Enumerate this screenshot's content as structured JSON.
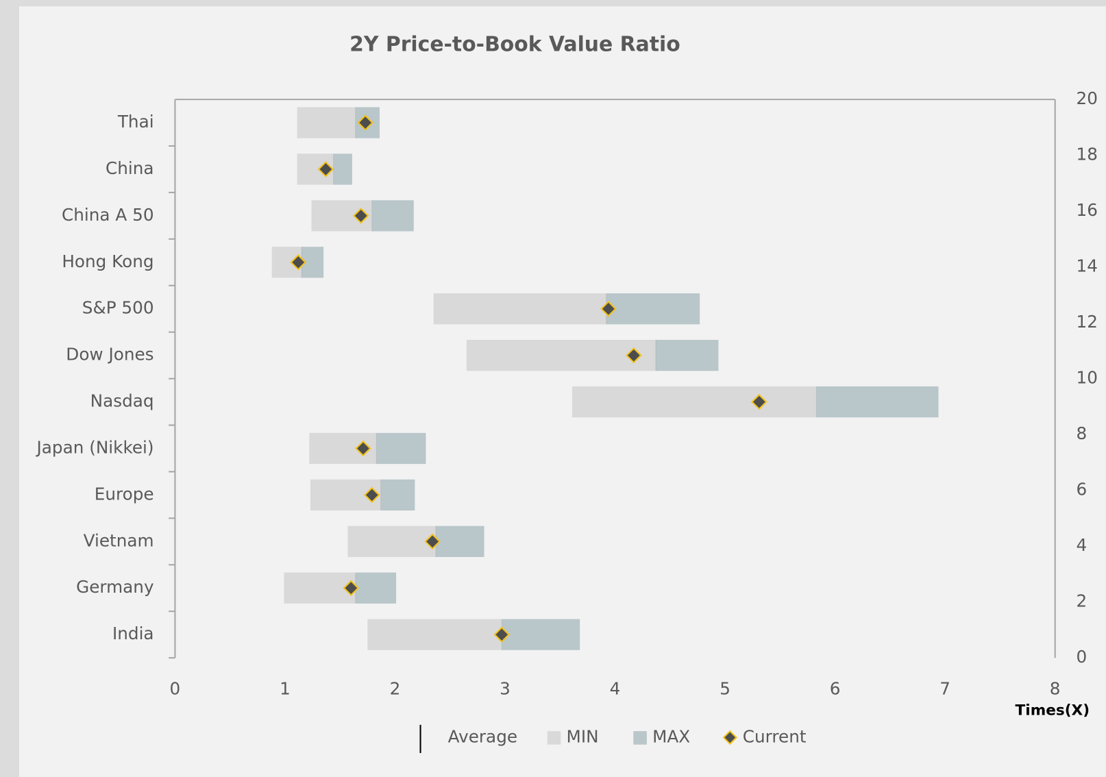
{
  "chart_data": {
    "type": "floating-bar",
    "title": "2Y Price-to-Book Value Ratio",
    "xlabel": "Times(X)",
    "categories": [
      "Thai",
      "China",
      "China A 50",
      "Hong Kong",
      "S&P 500",
      "Dow Jones",
      "Nasdaq",
      "Japan (Nikkei)",
      "Europe",
      "Vietnam",
      "Germany",
      "India"
    ],
    "series": [
      {
        "name": "Average",
        "color": "#000000",
        "values": [
          1.64,
          1.44,
          1.79,
          1.15,
          3.92,
          4.37,
          5.83,
          1.83,
          1.87,
          2.37,
          1.64,
          2.97
        ]
      },
      {
        "name": "MIN",
        "color": "#d9d9d9",
        "values": [
          1.11,
          1.11,
          1.24,
          0.88,
          2.35,
          2.65,
          3.61,
          1.22,
          1.23,
          1.57,
          0.99,
          1.75
        ]
      },
      {
        "name": "MAX",
        "color": "#b9c6ca",
        "values": [
          1.86,
          1.61,
          2.17,
          1.35,
          4.77,
          4.94,
          6.94,
          2.28,
          2.18,
          2.81,
          2.01,
          3.68
        ]
      },
      {
        "name": "Current",
        "color": "#4d4d4d",
        "edgecolor": "#f2c21b",
        "values": [
          1.73,
          1.37,
          1.69,
          1.12,
          3.94,
          4.17,
          5.31,
          1.71,
          1.79,
          2.34,
          1.6,
          2.97
        ]
      }
    ],
    "xlim": [
      0,
      8
    ],
    "xticks": [
      0,
      1,
      2,
      3,
      4,
      5,
      6,
      7,
      8
    ],
    "y2lim": [
      0,
      20
    ],
    "y2ticks": [
      0,
      2,
      4,
      6,
      8,
      10,
      12,
      14,
      16,
      18,
      20
    ],
    "legend": "bottom"
  }
}
